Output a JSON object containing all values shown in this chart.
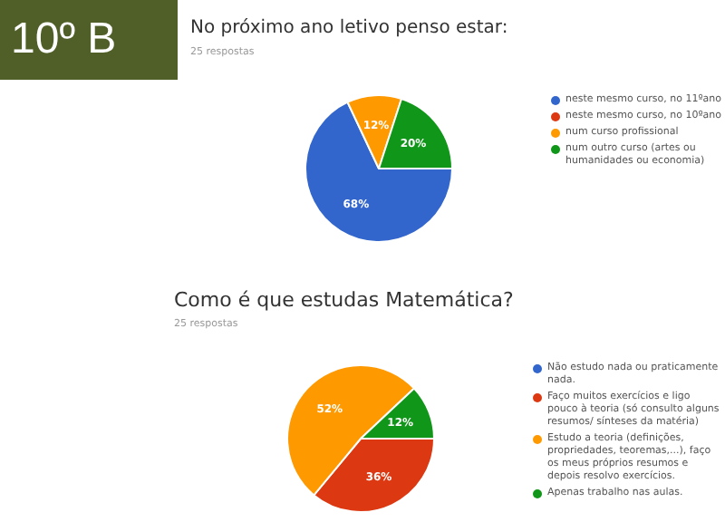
{
  "chart_data": [
    {
      "type": "pie",
      "title": "No próximo ano letivo penso estar:",
      "subtitle": "25 respostas",
      "annotations": [
        "10º B"
      ],
      "categories": [
        "neste mesmo curso, no 11ºano",
        "neste mesmo curso, no 10ºano",
        "num curso profissional",
        "num outro curso (artes ou humanidades ou economia)"
      ],
      "values": [
        68,
        0,
        12,
        20
      ],
      "value_labels": [
        "68%",
        null,
        "12%",
        "20%"
      ],
      "colors": [
        "#3366cc",
        "#dc3912",
        "#ff9900",
        "#109618"
      ],
      "legend": "right"
    },
    {
      "type": "pie",
      "title": "Como é que estudas Matemática?",
      "subtitle": "25 respostas",
      "categories": [
        "Não estudo nada ou praticamente nada.",
        "Faço muitos exercícios e ligo pouco à teoria (só consulto alguns resumos/ sínteses da matéria)",
        "Estudo a teoria (definições, propriedades, teoremas,...), faço os meus próprios resumos e depois resolvo exercícios.",
        "Apenas trabalho nas aulas."
      ],
      "values": [
        0,
        36,
        52,
        12
      ],
      "value_labels": [
        null,
        "36%",
        "52%",
        "12%"
      ],
      "colors": [
        "#3366cc",
        "#dc3912",
        "#ff9900",
        "#109618"
      ],
      "legend": "right"
    }
  ]
}
